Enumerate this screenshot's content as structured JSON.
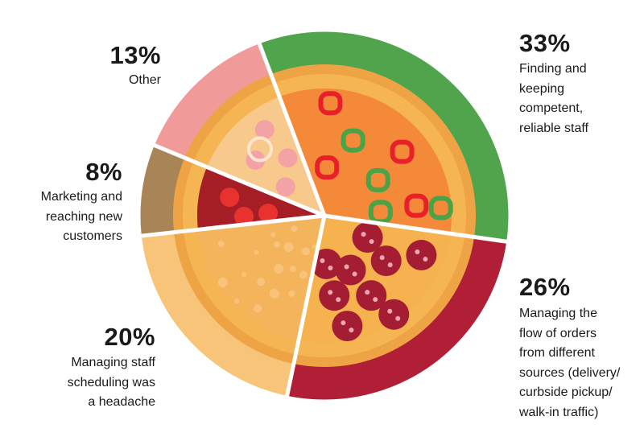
{
  "chart_data": {
    "type": "pie",
    "title": "",
    "slices": [
      {
        "label": "Finding and keeping competent, reliable staff",
        "lines": [
          "Finding and",
          "keeping",
          "competent,",
          "reliable staff"
        ],
        "value": 33,
        "display": "33%",
        "color": "#50a44b",
        "inner": "#f5893a"
      },
      {
        "label": "Managing the flow of orders from different sources (delivery/ curbside pickup/ walk-in traffic)",
        "lines": [
          "Managing the",
          "flow of orders",
          "from different",
          "sources (delivery/",
          "curbside pickup/",
          "walk-in traffic)"
        ],
        "value": 26,
        "display": "26%",
        "color": "#b01f35",
        "inner": "#f5b24f"
      },
      {
        "label": "Managing staff scheduling was a headache",
        "lines": [
          "Managing staff",
          "scheduling was",
          "a headache"
        ],
        "value": 20,
        "display": "20%",
        "color": "#f8c479",
        "inner": "#f4b45c"
      },
      {
        "label": "Marketing and reaching new customers",
        "lines": [
          "Marketing and",
          "reaching new",
          "customers"
        ],
        "value": 8,
        "display": "8%",
        "color": "#a88456",
        "inner": "#a51d25"
      },
      {
        "label": "Other",
        "lines": [
          "Other"
        ],
        "value": 13,
        "display": "13%",
        "color": "#f19a9a",
        "inner": "#f8c98c"
      }
    ],
    "start_angle_deg": -20.7,
    "direction": "clockwise",
    "legend": "none"
  }
}
